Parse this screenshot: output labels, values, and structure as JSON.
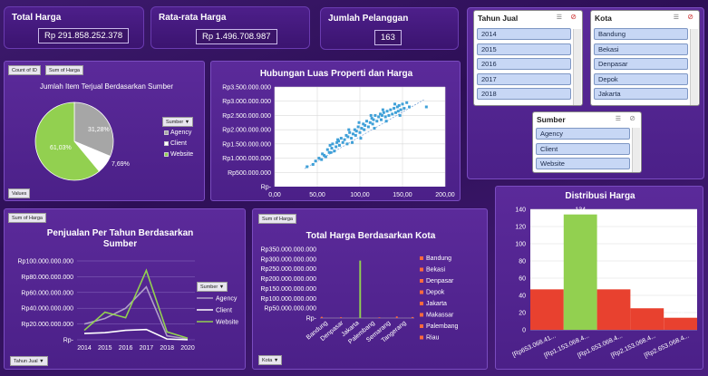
{
  "kpis": {
    "total_harga": {
      "title": "Total Harga",
      "value": "Rp 291.858.252.378"
    },
    "rata_harga": {
      "title": "Rata-rata Harga",
      "value": "Rp 1.496.708.987"
    },
    "jumlah_pelanggan": {
      "title": "Jumlah Pelanggan",
      "value": "163"
    }
  },
  "slicers": {
    "tahun": {
      "title": "Tahun Jual",
      "items": [
        "2014",
        "2015",
        "2016",
        "2017",
        "2018"
      ]
    },
    "kota": {
      "title": "Kota",
      "items": [
        "Bandung",
        "Bekasi",
        "Denpasar",
        "Depok",
        "Jakarta"
      ]
    },
    "sumber": {
      "title": "Sumber",
      "items": [
        "Agency",
        "Client",
        "Website"
      ]
    }
  },
  "pie": {
    "buttons": [
      "Count of ID",
      "Sum of Harga"
    ],
    "values_button": "Values",
    "legend_filter": "Sumber",
    "chart_data": {
      "type": "pie",
      "title": "Jumlah Item Terjual Berdasarkan Sumber",
      "labels": [
        "Agency",
        "Client",
        "Website"
      ],
      "values": [
        31.28,
        7.69,
        61.03
      ],
      "value_labels": [
        "31,28%",
        "7,69%",
        "61,03%"
      ],
      "colors": [
        "#a6a6a6",
        "#ffffff",
        "#92d050"
      ],
      "legend_position": "right"
    }
  },
  "scatter": {
    "chart_data": {
      "type": "scatter",
      "title": "Hubungan Luas Properti dan Harga",
      "xlim": [
        0,
        200
      ],
      "ylim": [
        0,
        3500000000
      ],
      "x_ticks": [
        "0,00",
        "50,00",
        "100,00",
        "150,00",
        "200,00"
      ],
      "y_ticks": [
        "Rp-",
        "Rp500.000.000",
        "Rp1.000.000.000",
        "Rp1.500.000.000",
        "Rp2.000.000.000",
        "Rp2.500.000.000",
        "Rp3.000.000.000",
        "Rp3.500.000.000"
      ],
      "trendline": [
        [
          35,
          630000000
        ],
        [
          175,
          3050000000
        ]
      ],
      "points": [
        [
          38,
          700000000
        ],
        [
          45,
          780000000
        ],
        [
          48,
          900000000
        ],
        [
          52,
          1000000000
        ],
        [
          55,
          950000000
        ],
        [
          56,
          1150000000
        ],
        [
          58,
          1100000000
        ],
        [
          60,
          1050000000
        ],
        [
          62,
          1300000000
        ],
        [
          64,
          1200000000
        ],
        [
          65,
          1450000000
        ],
        [
          67,
          1350000000
        ],
        [
          68,
          1500000000
        ],
        [
          70,
          1250000000
        ],
        [
          72,
          1400000000
        ],
        [
          73,
          1550000000
        ],
        [
          75,
          1600000000
        ],
        [
          76,
          1450000000
        ],
        [
          78,
          1700000000
        ],
        [
          80,
          1550000000
        ],
        [
          82,
          1650000000
        ],
        [
          84,
          1800000000
        ],
        [
          85,
          1500000000
        ],
        [
          86,
          1750000000
        ],
        [
          88,
          1900000000
        ],
        [
          90,
          1700000000
        ],
        [
          92,
          1850000000
        ],
        [
          94,
          2000000000
        ],
        [
          95,
          1800000000
        ],
        [
          96,
          1950000000
        ],
        [
          98,
          2100000000
        ],
        [
          100,
          1900000000
        ],
        [
          102,
          2050000000
        ],
        [
          104,
          2200000000
        ],
        [
          105,
          2000000000
        ],
        [
          106,
          2150000000
        ],
        [
          108,
          2300000000
        ],
        [
          110,
          2100000000
        ],
        [
          112,
          2250000000
        ],
        [
          114,
          2400000000
        ],
        [
          115,
          2200000000
        ],
        [
          116,
          2350000000
        ],
        [
          118,
          2500000000
        ],
        [
          120,
          2300000000
        ],
        [
          122,
          2450000000
        ],
        [
          124,
          2550000000
        ],
        [
          125,
          2350000000
        ],
        [
          126,
          2500000000
        ],
        [
          128,
          2600000000
        ],
        [
          130,
          2450000000
        ],
        [
          132,
          2650000000
        ],
        [
          134,
          2500000000
        ],
        [
          136,
          2700000000
        ],
        [
          138,
          2550000000
        ],
        [
          140,
          2750000000
        ],
        [
          142,
          2600000000
        ],
        [
          144,
          2800000000
        ],
        [
          145,
          2650000000
        ],
        [
          146,
          2850000000
        ],
        [
          148,
          2700000000
        ],
        [
          150,
          2900000000
        ],
        [
          152,
          2750000000
        ],
        [
          155,
          2950000000
        ],
        [
          158,
          2800000000
        ],
        [
          178,
          2800000000
        ],
        [
          66,
          1200000000
        ],
        [
          74,
          1650000000
        ],
        [
          87,
          2000000000
        ],
        [
          99,
          2250000000
        ],
        [
          113,
          2500000000
        ],
        [
          127,
          2700000000
        ],
        [
          141,
          2900000000
        ],
        [
          101,
          1700000000
        ],
        [
          91,
          1550000000
        ],
        [
          117,
          2050000000
        ],
        [
          131,
          2300000000
        ],
        [
          147,
          2500000000
        ]
      ]
    }
  },
  "line": {
    "top_button": "Sum of Harga",
    "bottom_button": "Tahun Jual",
    "legend_filter": "Sumber",
    "chart_data": {
      "type": "line",
      "title": "Penjualan Per Tahun Berdasarkan Sumber",
      "x": [
        "2014",
        "2015",
        "2016",
        "2017",
        "2018",
        "2020"
      ],
      "ylim": [
        0,
        100000000000
      ],
      "y_ticks": [
        "Rp-",
        "Rp20.000.000.000",
        "Rp40.000.000.000",
        "Rp60.000.000.000",
        "Rp80.000.000.000",
        "Rp100.000.000.000"
      ],
      "series": [
        {
          "name": "Agency",
          "color": "#b0a0c8",
          "values": [
            20000000000,
            27000000000,
            40000000000,
            67000000000,
            5000000000,
            1000000000
          ]
        },
        {
          "name": "Client",
          "color": "#ffffff",
          "values": [
            8000000000,
            9000000000,
            12000000000,
            13000000000,
            1000000000,
            0
          ]
        },
        {
          "name": "Website",
          "color": "#92d050",
          "values": [
            12000000000,
            35000000000,
            28000000000,
            88000000000,
            10000000000,
            2000000000
          ]
        }
      ]
    }
  },
  "kota_chart": {
    "top_button": "Sum of Harga",
    "bottom_button": "Kota",
    "chart_data": {
      "type": "bar",
      "title": "Total Harga Berdasarkan Kota",
      "ylim": [
        0,
        350000000000
      ],
      "y_ticks": [
        "Rp-",
        "Rp50.000.000.000",
        "Rp100.000.000.000",
        "Rp150.000.000.000",
        "Rp200.000.000.000",
        "Rp250.000.000.000",
        "Rp300.000.000.000",
        "Rp350.000.000.000"
      ],
      "categories": [
        "Bandung",
        "Denpasar",
        "Jakarta",
        "Palembang",
        "Semarang",
        "Tangerang"
      ],
      "series": [
        {
          "name": "Bandung",
          "color": "#ff6a3d",
          "values": [
            6000000000,
            0,
            0,
            0,
            0,
            0
          ]
        },
        {
          "name": "Bekasi",
          "color": "#ff6a3d",
          "values": [
            0,
            0,
            0,
            0,
            0,
            0
          ]
        },
        {
          "name": "Denpasar",
          "color": "#ff6a3d",
          "values": [
            0,
            4000000000,
            0,
            0,
            0,
            0
          ]
        },
        {
          "name": "Depok",
          "color": "#ff6a3d",
          "values": [
            0,
            0,
            0,
            0,
            0,
            0
          ]
        },
        {
          "name": "Jakarta",
          "color": "#92d050",
          "values": [
            0,
            0,
            292000000000,
            0,
            0,
            0
          ]
        },
        {
          "name": "Makassar",
          "color": "#ff6a3d",
          "values": [
            0,
            0,
            0,
            0,
            0,
            0
          ]
        },
        {
          "name": "Palembang",
          "color": "#ff6a3d",
          "values": [
            0,
            0,
            0,
            3000000000,
            0,
            0
          ]
        },
        {
          "name": "Riau",
          "color": "#ff6a3d",
          "values": [
            0,
            0,
            0,
            0,
            8000000000,
            5000000000
          ]
        }
      ],
      "legend": [
        "Bandung",
        "Bekasi",
        "Denpasar",
        "Depok",
        "Jakarta",
        "Makassar",
        "Palembang",
        "Riau"
      ]
    }
  },
  "distribusi": {
    "chart_data": {
      "type": "bar",
      "title": "Distribusi Harga",
      "categories": [
        "[Rp653.068.41...",
        "[Rp1.153.068.4...",
        "[Rp1.653.068.4...",
        "[Rp2.153.068.4...",
        "[Rp2.653.068.4..."
      ],
      "values": [
        47,
        134,
        47,
        25,
        14
      ],
      "colors": [
        "#e8412f",
        "#92d050",
        "#e8412f",
        "#e8412f",
        "#e8412f"
      ],
      "ylim": [
        0,
        140
      ],
      "y_ticks": [
        "0",
        "20",
        "40",
        "60",
        "80",
        "100",
        "120",
        "140"
      ]
    }
  }
}
